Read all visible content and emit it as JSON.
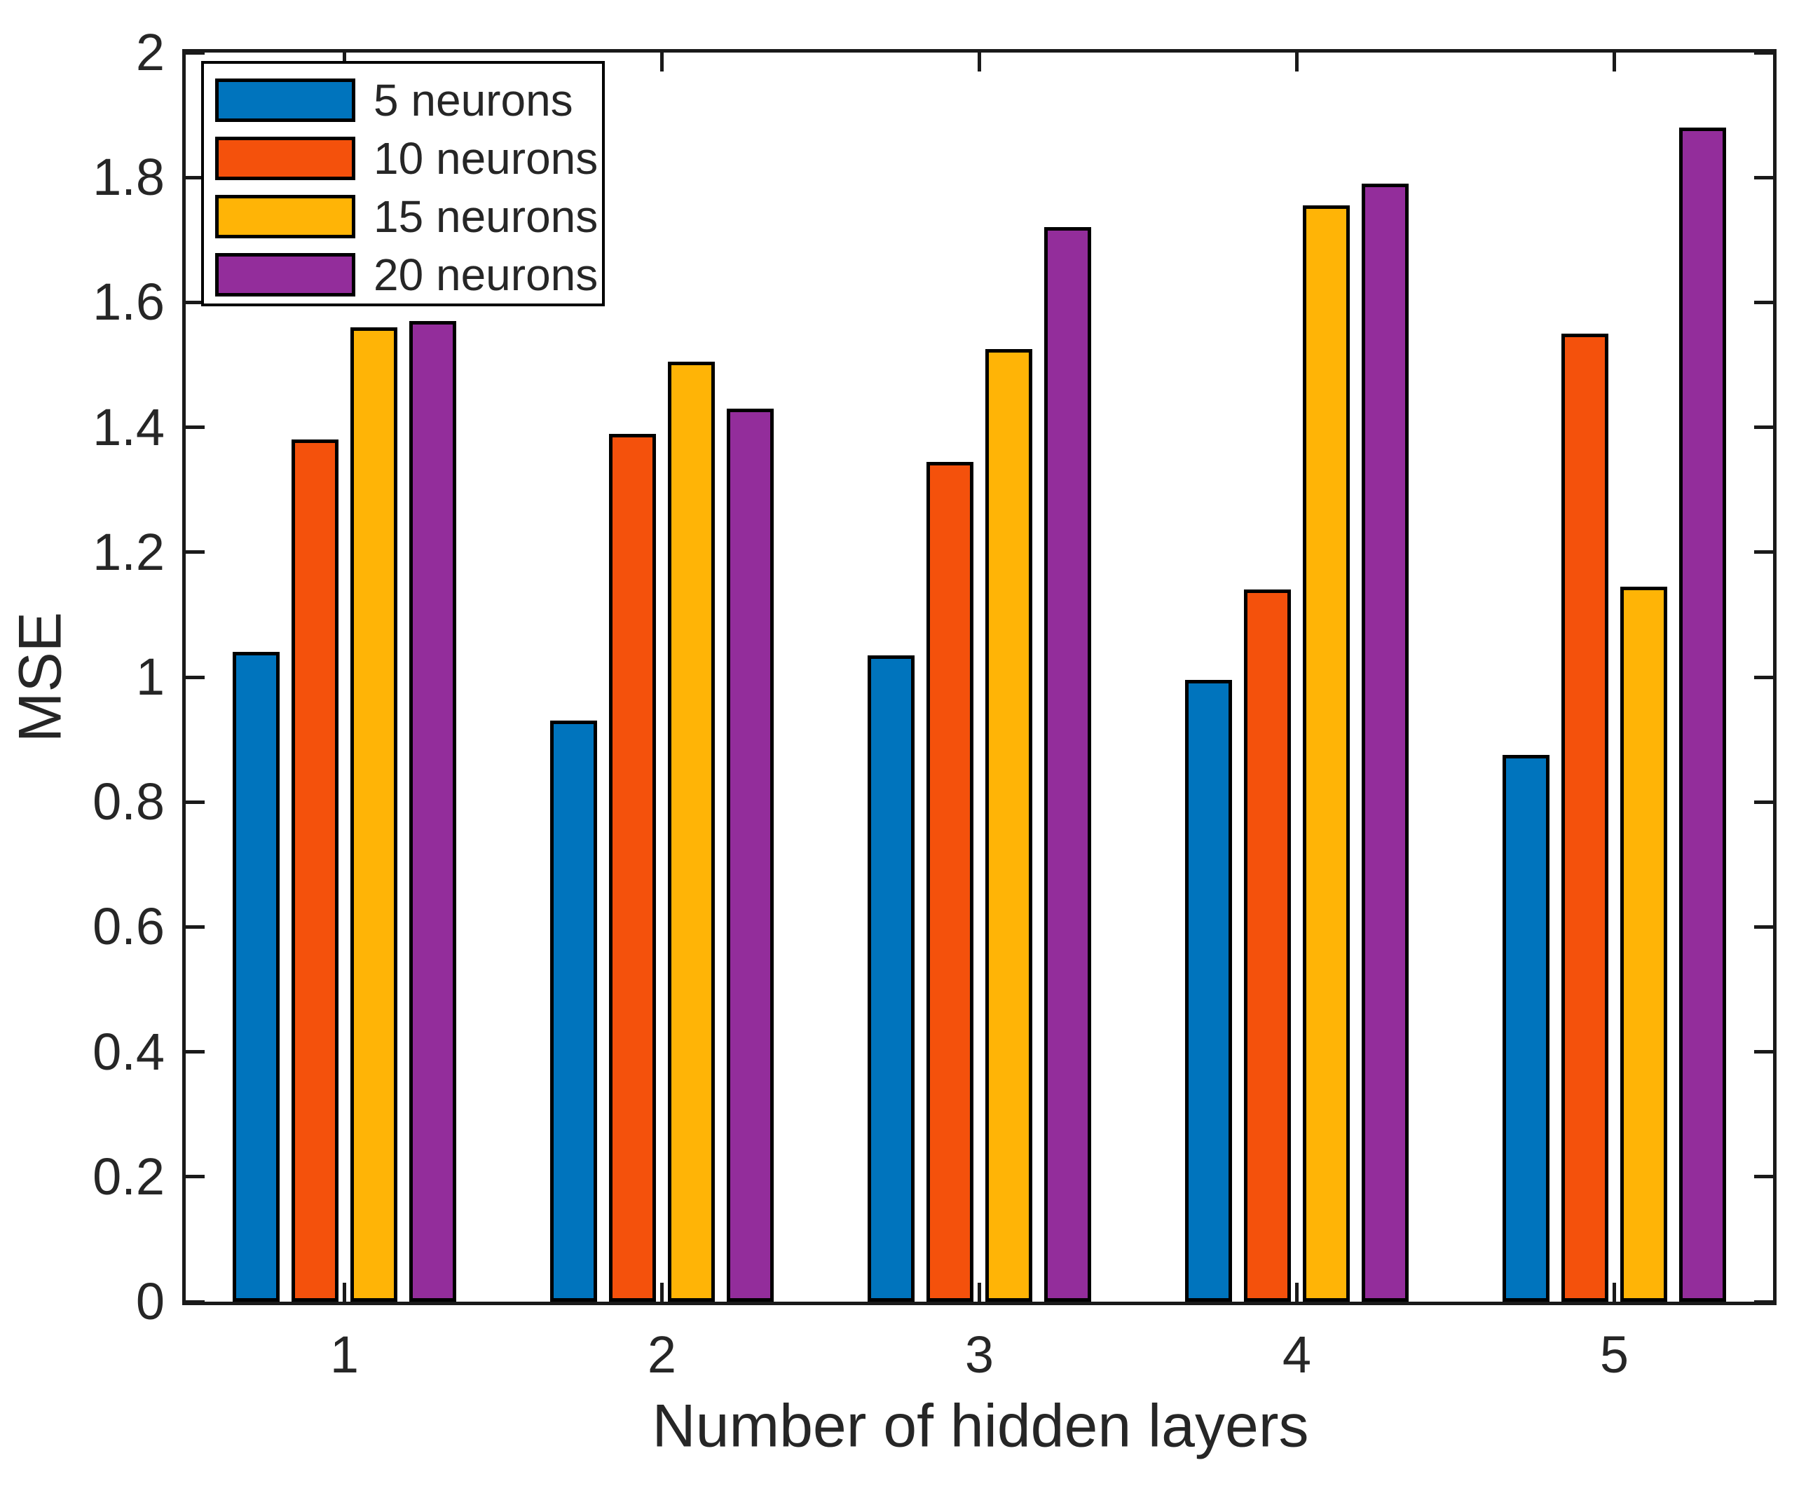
{
  "chart_data": {
    "type": "bar",
    "title": "",
    "xlabel": "Number of hidden layers",
    "ylabel": "MSE",
    "categories": [
      "1",
      "2",
      "3",
      "4",
      "5"
    ],
    "series": [
      {
        "name": "5 neurons",
        "color": "#0074BD",
        "values": [
          1.04,
          0.93,
          1.035,
          0.995,
          0.875
        ]
      },
      {
        "name": "10 neurons",
        "color": "#F4510C",
        "values": [
          1.38,
          1.39,
          1.345,
          1.14,
          1.55
        ]
      },
      {
        "name": "15 neurons",
        "color": "#FFB406",
        "values": [
          1.56,
          1.505,
          1.525,
          1.755,
          1.145
        ]
      },
      {
        "name": "20 neurons",
        "color": "#932D9B",
        "values": [
          1.57,
          1.43,
          1.72,
          1.79,
          1.88
        ]
      }
    ],
    "ylim": [
      0,
      2
    ],
    "ytick_labels": [
      "0",
      "0.2",
      "0.4",
      "0.6",
      "0.8",
      "1",
      "1.2",
      "1.4",
      "1.6",
      "1.8",
      "2"
    ],
    "grid": false,
    "legend_position": "top-left",
    "bar_edge_color": "#000000",
    "axis_color": "#1a1a1a"
  }
}
